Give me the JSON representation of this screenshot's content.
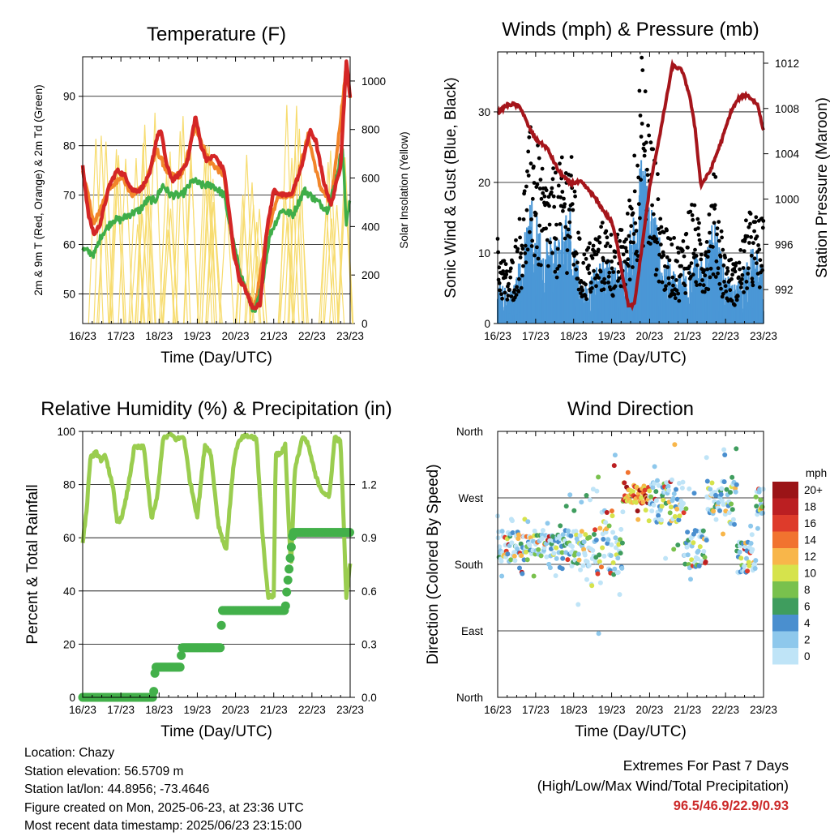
{
  "charts_x_ticks": [
    "16/23",
    "17/23",
    "18/23",
    "19/23",
    "20/23",
    "21/23",
    "22/23",
    "23/23"
  ],
  "chart_data": [
    {
      "type": "line",
      "title": "Temperature (F)",
      "xlabel": "Time (Day/UTC)",
      "ylabel": "2m & 9m T (Red, Orange) & 2m Td (Green)",
      "ylabel_right": "Solar Insolation (Yellow)",
      "ylim": [
        44,
        98
      ],
      "ylim_right": [
        0,
        1100
      ],
      "yticks": [
        50,
        60,
        70,
        80,
        90
      ],
      "yticks_right": [
        0,
        200,
        400,
        600,
        800,
        1000
      ],
      "colors": {
        "t2m": "#d42626",
        "t9m": "#f2862a",
        "td2m": "#3fae49",
        "solar": "#f7dc6f"
      },
      "series": [
        {
          "key": "t2m",
          "x": [
            0,
            0.15,
            0.3,
            0.45,
            0.7,
            0.9,
            1.1,
            1.3,
            1.5,
            1.75,
            1.95,
            2.05,
            2.2,
            2.35,
            2.5,
            2.75,
            2.95,
            3.1,
            3.25,
            3.45,
            3.7,
            3.95,
            4.1,
            4.25,
            4.45,
            4.65,
            4.8,
            5.0,
            5.2,
            5.45,
            5.7,
            5.95,
            6.1,
            6.3,
            6.5,
            6.75,
            6.9,
            7.0
          ],
          "y": [
            76,
            66,
            62,
            64,
            72,
            75,
            74,
            71,
            71,
            74,
            82,
            83,
            76,
            73,
            74,
            77,
            86,
            80,
            77,
            78,
            75,
            59,
            53,
            51,
            47,
            48,
            62,
            71,
            70,
            70,
            75,
            83,
            81,
            73,
            68,
            76,
            97,
            90
          ]
        },
        {
          "key": "t9m",
          "x": [
            0,
            0.3,
            0.6,
            1.0,
            1.3,
            1.6,
            1.95,
            2.25,
            2.6,
            2.95,
            3.3,
            3.7,
            3.95,
            4.2,
            4.5,
            4.8,
            5.1,
            5.5,
            5.9,
            6.2,
            6.5,
            6.9,
            7.0
          ],
          "y": [
            75,
            64,
            70,
            74,
            70,
            72,
            79,
            74,
            74,
            84,
            77,
            74,
            58,
            52,
            47,
            61,
            70,
            70,
            82,
            72,
            68,
            96,
            90
          ]
        },
        {
          "key": "td2m",
          "x": [
            0,
            0.3,
            0.5,
            0.8,
            1.0,
            1.2,
            1.5,
            1.7,
            1.9,
            2.1,
            2.3,
            2.6,
            2.9,
            3.1,
            3.4,
            3.7,
            3.9,
            4.1,
            4.3,
            4.5,
            4.7,
            4.9,
            5.2,
            5.5,
            5.8,
            6.1,
            6.4,
            6.6,
            6.8,
            6.9,
            7.0
          ],
          "y": [
            59,
            58,
            62,
            65,
            65,
            66,
            67,
            69,
            69,
            72,
            70,
            70,
            73,
            72,
            72,
            70,
            62,
            55,
            50,
            46,
            52,
            62,
            67,
            66,
            71,
            69,
            67,
            72,
            80,
            64,
            69
          ]
        },
        {
          "key": "solar",
          "peaks": [
            [
              0.42,
              940
            ],
            [
              1.0,
              810
            ],
            [
              1.45,
              800
            ],
            [
              1.75,
              910
            ],
            [
              2.3,
              720
            ],
            [
              2.7,
              950
            ],
            [
              3.35,
              880
            ],
            [
              3.6,
              730
            ],
            [
              4.3,
              780
            ],
            [
              4.55,
              600
            ],
            [
              5.3,
              950
            ],
            [
              5.6,
              900
            ],
            [
              6.35,
              870
            ],
            [
              6.75,
              980
            ]
          ]
        }
      ]
    },
    {
      "type": "scatter",
      "title": "Winds (mph) & Pressure (mb)",
      "xlabel": "Time (Day/UTC)",
      "ylabel": "Sonic Wind & Gust (Blue, Black)",
      "ylabel_right": "Station Pressure (Maroon)",
      "ylim": [
        0,
        38.5
      ],
      "ylim_right": [
        989,
        1013
      ],
      "yticks": [
        0,
        10,
        20,
        30
      ],
      "yticks_right": [
        992,
        996,
        1000,
        1004,
        1008,
        1012
      ],
      "colors": {
        "wind": "#4a97d6",
        "gust": "#000000",
        "pressure": "#a5151b"
      },
      "series": [
        {
          "key": "wind_envelope",
          "x": [
            0,
            0.3,
            0.6,
            0.9,
            1.2,
            1.6,
            1.9,
            2.2,
            2.5,
            2.8,
            3.1,
            3.4,
            3.8,
            4.1,
            4.4,
            4.8,
            5.1,
            5.4,
            5.7,
            6.0,
            6.3,
            6.6,
            7.0
          ],
          "y": [
            5,
            3,
            7,
            13,
            9,
            10,
            13,
            4,
            5,
            7,
            6,
            7,
            18,
            13,
            7,
            5,
            9,
            6,
            11,
            5,
            4,
            8,
            7
          ]
        },
        {
          "key": "gust_envelope",
          "x": [
            0,
            0.3,
            0.6,
            0.9,
            1.2,
            1.6,
            1.9,
            2.2,
            2.5,
            2.8,
            3.1,
            3.4,
            3.8,
            4.1,
            4.4,
            4.8,
            5.1,
            5.4,
            5.7,
            6.0,
            6.3,
            6.6,
            7.0
          ],
          "y": [
            10,
            6,
            13,
            24,
            17,
            18,
            21,
            8,
            10,
            12,
            10,
            12,
            31,
            21,
            11,
            9,
            15,
            10,
            18,
            8,
            7,
            13,
            12
          ]
        },
        {
          "key": "pressure",
          "x": [
            0,
            0.2,
            0.4,
            0.6,
            0.8,
            1.0,
            1.3,
            1.6,
            1.9,
            2.2,
            2.5,
            2.8,
            3.0,
            3.15,
            3.3,
            3.45,
            3.6,
            3.75,
            4.0,
            4.3,
            4.6,
            4.85,
            5.05,
            5.2,
            5.35,
            5.6,
            5.9,
            6.15,
            6.35,
            6.55,
            6.7,
            6.85,
            7.0
          ],
          "y": [
            1007.6,
            1008.2,
            1008.4,
            1008.1,
            1006.5,
            1005.3,
            1004.5,
            1002.5,
            1001.4,
            1001.5,
            1000.4,
            998.9,
            998.0,
            996.0,
            993.0,
            990.5,
            990.7,
            994.5,
            1001.0,
            1006.2,
            1011.8,
            1011.4,
            1009.2,
            1006.2,
            1001.2,
            1002.5,
            1005.2,
            1007.8,
            1008.9,
            1009.2,
            1008.8,
            1008.3,
            1006.0
          ]
        }
      ]
    },
    {
      "type": "line",
      "title": "Relative Humidity (%) & Precipitation (in)",
      "xlabel": "Time (Day/UTC)",
      "ylabel": "Percent & Total Rainfall",
      "ylim": [
        0,
        100
      ],
      "ylim_right": [
        0,
        1.5
      ],
      "yticks": [
        0,
        20,
        40,
        60,
        80,
        100
      ],
      "yticks_right": [
        "0.0",
        "0.3",
        "0.6",
        "0.9",
        "1.2"
      ],
      "colors": {
        "rh": "#9acd4f",
        "precip": "#43b04a"
      },
      "series": [
        {
          "key": "rh",
          "x": [
            0,
            0.1,
            0.2,
            0.35,
            0.5,
            0.6,
            0.8,
            0.9,
            1.0,
            1.1,
            1.2,
            1.35,
            1.6,
            1.7,
            1.8,
            1.95,
            2.1,
            2.3,
            2.45,
            2.65,
            2.8,
            3.0,
            3.2,
            3.35,
            3.55,
            3.75,
            3.95,
            4.05,
            4.2,
            4.4,
            4.55,
            4.7,
            4.85,
            5.0,
            5.05,
            5.15,
            5.3,
            5.45,
            5.55,
            5.75,
            5.9,
            6.1,
            6.25,
            6.45,
            6.6,
            6.75,
            6.85,
            6.9,
            7.0
          ],
          "y": [
            58,
            70,
            90,
            92,
            89,
            91,
            78,
            66,
            67,
            72,
            80,
            94,
            94,
            81,
            67,
            75,
            97,
            99,
            97,
            98,
            82,
            68,
            95,
            92,
            65,
            55,
            88,
            95,
            98,
            98,
            97,
            62,
            38,
            38,
            92,
            91,
            95,
            48,
            85,
            98,
            95,
            83,
            78,
            75,
            98,
            96,
            58,
            37,
            51
          ]
        },
        {
          "key": "precip_total",
          "x": [
            0,
            1.85,
            1.9,
            2.55,
            2.6,
            3.6,
            3.65,
            5.3,
            5.35,
            5.5,
            7.0
          ],
          "y": [
            0,
            0,
            0.17,
            0.17,
            0.28,
            0.28,
            0.49,
            0.49,
            0.62,
            0.93,
            0.93
          ]
        }
      ]
    },
    {
      "type": "scatter",
      "title": "Wind Direction",
      "xlabel": "Time (Day/UTC)",
      "ylabel": "Direction (Colored By Speed)",
      "yticks": [
        "North",
        "East",
        "South",
        "West",
        "North"
      ],
      "ylim": [
        0,
        360
      ],
      "legend_title": "mph",
      "legend_levels": [
        "0",
        "2",
        "4",
        "6",
        "8",
        "10",
        "12",
        "14",
        "16",
        "18",
        "20+"
      ],
      "legend_colors": [
        "#bfe4f7",
        "#8ec8ec",
        "#4a8fcf",
        "#3f9d5e",
        "#79c14d",
        "#d6e34c",
        "#f8b64a",
        "#f1732f",
        "#de3b2b",
        "#bb1f22",
        "#9b1417"
      ],
      "series": [
        {
          "key": "dir_segments",
          "note": "direction in degrees by time segment",
          "segments": [
            [
              0,
              0.7,
              205,
              40
            ],
            [
              0.7,
              1.7,
              205,
              30
            ],
            [
              1.7,
              2.6,
              200,
              55
            ],
            [
              2.6,
              3.3,
              210,
              90
            ],
            [
              3.3,
              4.0,
              275,
              25
            ],
            [
              4.0,
              4.9,
              265,
              60
            ],
            [
              4.9,
              5.5,
              200,
              55
            ],
            [
              5.5,
              6.3,
              270,
              45
            ],
            [
              6.3,
              6.8,
              190,
              45
            ],
            [
              6.8,
              7.0,
              265,
              35
            ]
          ]
        }
      ]
    }
  ],
  "info": {
    "location": "Location: Chazy",
    "elevation": "Station elevation: 56.5709 m",
    "latlon": "Station lat/lon: 44.8956; -73.4646",
    "created": "Figure created on Mon, 2025-06-23, at 23:36 UTC",
    "timestamp": "Most recent data timestamp: 2025/06/23 23:15:00"
  },
  "extremes": {
    "title": "Extremes For Past 7 Days",
    "subtitle": "(High/Low/Max Wind/Total Precipitation)",
    "values": "96.5/46.9/22.9/0.93"
  }
}
